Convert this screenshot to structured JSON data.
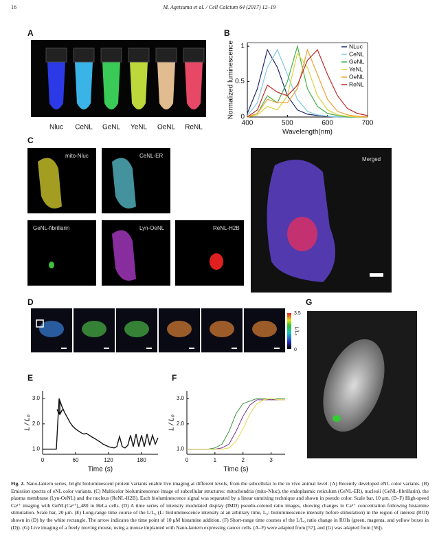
{
  "header": {
    "page_number": "16",
    "citation": "M. Agetsuma et al. / Cell Calcium 64 (2017) 12–19"
  },
  "panel_a": {
    "label": "A",
    "tube_labels": [
      "Nluc",
      "CeNL",
      "GeNL",
      "YeNL",
      "OeNL",
      "ReNL"
    ]
  },
  "panel_b": {
    "label": "B",
    "chart": {
      "type": "line",
      "xlabel": "Wavelength(nm)",
      "ylabel": "Normalized luminescence",
      "x": [
        400,
        425,
        450,
        475,
        500,
        525,
        550,
        575,
        600,
        625,
        650,
        675,
        700
      ],
      "xlim": [
        400,
        700
      ],
      "xticks": [
        400,
        500,
        600,
        700
      ],
      "ylim": [
        0,
        1.05
      ],
      "yticks": [
        0,
        0.5,
        1
      ],
      "legend": "upper right",
      "series": [
        {
          "name": "NLuc",
          "color": "#1f2a6b",
          "values": [
            0.05,
            0.4,
            0.95,
            0.7,
            0.3,
            0.1,
            0.04,
            0.02,
            0.01,
            0,
            0,
            0,
            0
          ]
        },
        {
          "name": "CeNL",
          "color": "#7fc7e8",
          "values": [
            0.02,
            0.2,
            0.7,
            0.95,
            0.6,
            0.25,
            0.08,
            0.03,
            0.01,
            0,
            0,
            0,
            0
          ]
        },
        {
          "name": "GeNL",
          "color": "#46b04a",
          "values": [
            0,
            0.05,
            0.3,
            0.2,
            0.5,
            1.0,
            0.4,
            0.15,
            0.05,
            0.02,
            0,
            0,
            0
          ]
        },
        {
          "name": "YeNL",
          "color": "#d9d43a",
          "values": [
            0,
            0.03,
            0.15,
            0.1,
            0.3,
            0.9,
            0.7,
            0.3,
            0.1,
            0.03,
            0.01,
            0,
            0
          ]
        },
        {
          "name": "OeNL",
          "color": "#f0a030",
          "values": [
            0,
            0.05,
            0.25,
            0.2,
            0.2,
            0.4,
            0.95,
            0.6,
            0.25,
            0.08,
            0.03,
            0.01,
            0
          ]
        },
        {
          "name": "ReNL",
          "color": "#c0282a",
          "values": [
            0,
            0.1,
            0.45,
            0.35,
            0.3,
            0.45,
            0.8,
            0.95,
            0.6,
            0.3,
            0.12,
            0.05,
            0.02
          ]
        }
      ]
    }
  },
  "panel_c": {
    "label": "C",
    "image_labels": [
      "mito-Nluc",
      "CeNL-ER",
      "GeNL-fibrillarin",
      "Lyn-OeNL",
      "ReNL-H2B",
      "Merged"
    ]
  },
  "panel_d": {
    "label": "D",
    "colorbar_ticks": [
      3.5,
      0
    ],
    "colorbar_label": "L/L₀"
  },
  "panel_e": {
    "label": "E",
    "chart": {
      "type": "line",
      "xlabel": "Time (s)",
      "ylabel": "L / L₀",
      "x": [
        0,
        5,
        10,
        15,
        20,
        25,
        30,
        35,
        40,
        45,
        50,
        55,
        60,
        65,
        70,
        75,
        80,
        85,
        90,
        95,
        100,
        105,
        110,
        115,
        120,
        125,
        130,
        135,
        140,
        145,
        150,
        155,
        160,
        165,
        170,
        175,
        180,
        185,
        190,
        195,
        200,
        205,
        210
      ],
      "xlim": [
        0,
        210
      ],
      "xticks": [
        0,
        60,
        120,
        180
      ],
      "ylim": [
        0.8,
        3.3
      ],
      "yticks": [
        {
          "value": 1,
          "label": "1.0"
        },
        {
          "value": 2,
          "label": "2.0"
        },
        {
          "value": 3,
          "label": "3.0"
        }
      ],
      "series": [
        {
          "color": "#111111",
          "values": [
            1.0,
            1.0,
            1.0,
            1.0,
            1.0,
            1.0,
            3.0,
            2.7,
            2.45,
            2.25,
            2.05,
            1.9,
            1.8,
            1.72,
            1.65,
            1.6,
            1.62,
            1.55,
            1.48,
            1.42,
            1.35,
            1.28,
            1.2,
            1.15,
            1.1,
            1.07,
            1.05,
            1.1,
            1.5,
            1.1,
            1.05,
            1.15,
            1.55,
            1.1,
            1.6,
            1.1,
            1.55,
            1.1,
            1.6,
            1.15,
            1.55,
            1.2,
            1.45
          ]
        }
      ]
    }
  },
  "panel_f": {
    "label": "F",
    "chart": {
      "type": "line",
      "xlabel": "Time (s)",
      "ylabel": "L / L₀",
      "x": [
        0,
        0.25,
        0.5,
        0.75,
        1,
        1.25,
        1.5,
        1.75,
        2,
        2.25,
        2.5,
        2.75,
        3,
        3.25,
        3.5
      ],
      "xlim": [
        0,
        3.5
      ],
      "xticks": [
        0,
        1,
        2,
        3
      ],
      "ylim": [
        0.8,
        3.3
      ],
      "yticks": [
        {
          "value": 1,
          "label": "1.0"
        },
        {
          "value": 2,
          "label": "2.0"
        },
        {
          "value": 3,
          "label": "3.0"
        }
      ],
      "series": [
        {
          "color": "#3c8f3c",
          "values": [
            1,
            1,
            1,
            1,
            1.05,
            1.2,
            1.7,
            2.4,
            2.8,
            2.9,
            3.0,
            3.0,
            2.95,
            3.0,
            3.0
          ]
        },
        {
          "color": "#7a2f8f",
          "values": [
            1,
            1,
            1,
            1,
            1,
            1.05,
            1.2,
            1.7,
            2.3,
            2.75,
            2.95,
            2.95,
            2.95,
            2.95,
            2.95
          ]
        },
        {
          "color": "#e8d84a",
          "values": [
            1,
            1,
            1,
            1,
            1,
            1,
            1.05,
            1.3,
            1.8,
            2.4,
            2.8,
            2.95,
            3.0,
            2.95,
            2.95
          ]
        }
      ]
    }
  },
  "panel_g": {
    "label": "G"
  },
  "caption": {
    "label": "Fig. 2.",
    "text": "Nano-lantern series, bright bioluminescent protein variants enable live imaging at different levels, from the subcellular to the in vivo animal level. (A) Recently developed eNL color variants. (B) Emission spectra of eNL color variants. (C) Multicolor bioluminescence image of subcellular structures: mitochondria (mito-Nluc), the endoplasmic reticulum (CeNL-ER), nucleoli (GeNL-fibrillarin), the plasma membrane (Lyn-OeNL) and the nucleus (ReNL-H2B). Each bioluminescence signal was separated by a linear unmixing technique and shown in pseudo color. Scale bar, 10 μm. (D–F) High-speed Ca²⁺ imaging with GeNL(Ca²⁺)_480 in HeLa cells. (D) A time series of intensity modulated display (IMD) pseudo-colored ratio images, showing changes in Ca²⁺ concentration following histamine stimulation. Scale bar, 20 μm. (E) Long-range time course of the L/L₀ (L: bioluminescence intensity at an arbitrary time, L₀: bioluminescence intensity before stimulation) in the region of interest (ROI) shown in (D) by the white rectangle. The arrow indicates the time point of 10 μM histamine addition. (F) Short-range time courses of the L/L₀ ratio change in ROIs (green, magenta, and yellow boxes in (D)). (G) Live imaging of a freely moving mouse, using a mouse implanted with Nano-lantern expressing cancer cells. (A–F) were adapted from [57], and (G) was adapted from [56])."
  }
}
